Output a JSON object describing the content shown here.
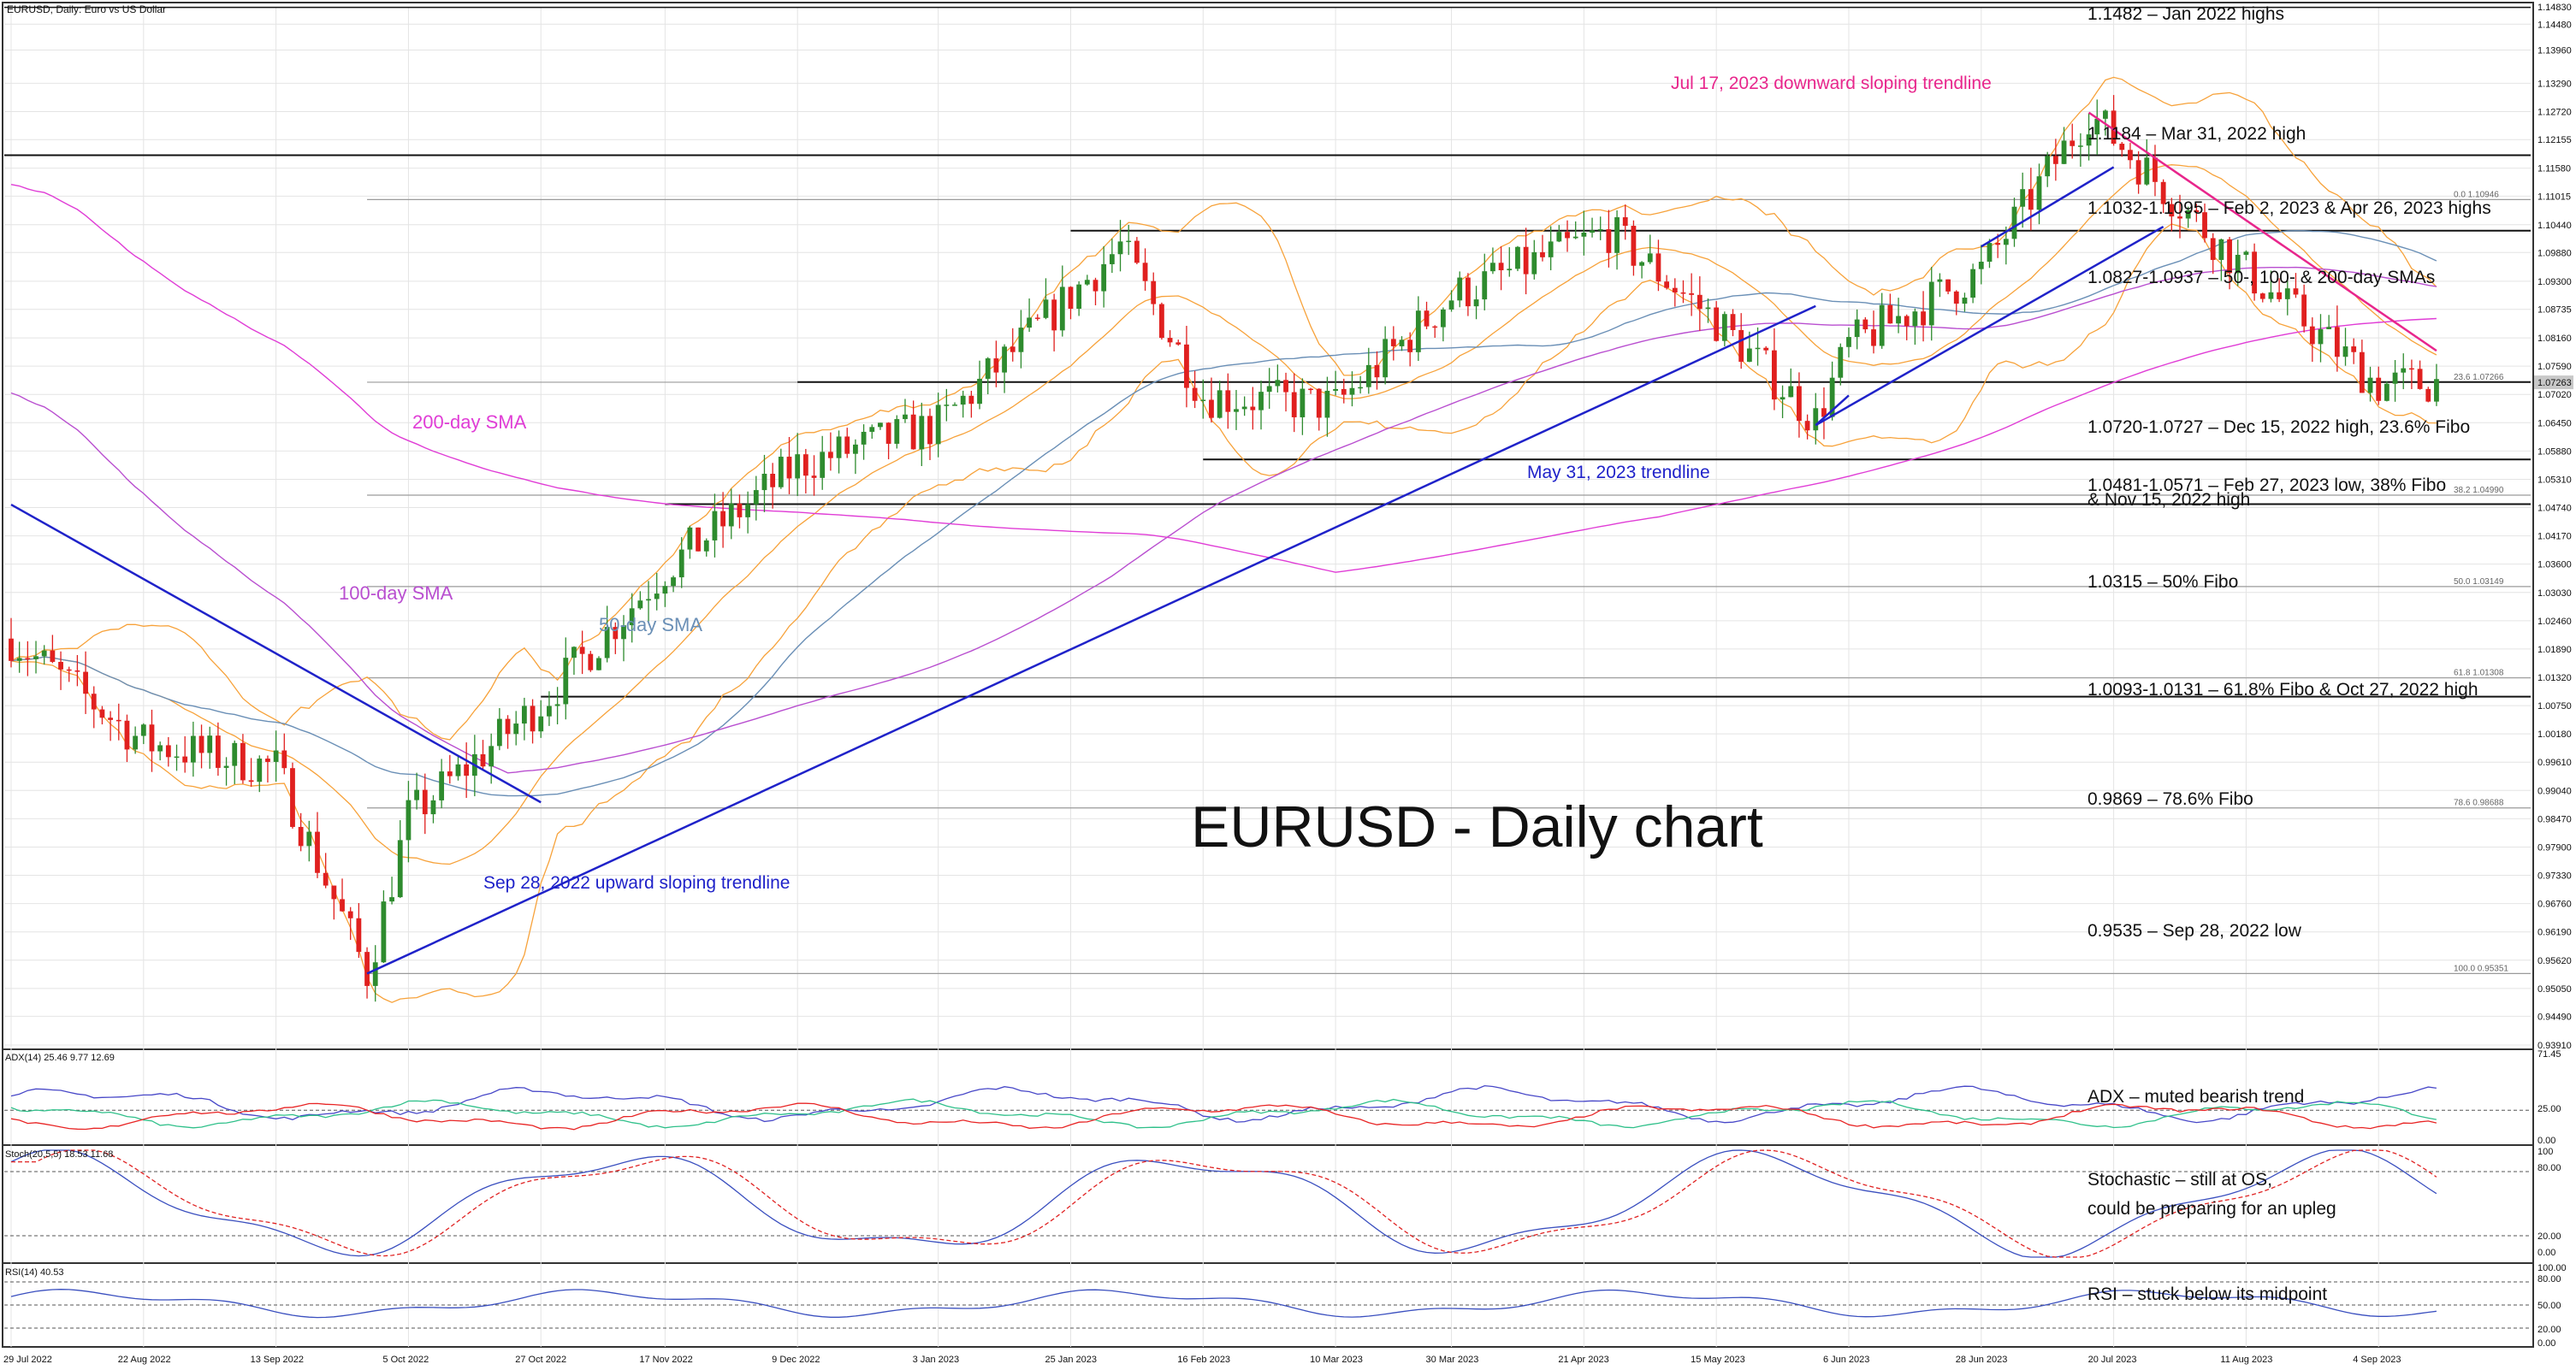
{
  "header": {
    "instrument_label": "EURUSD, Daily:  Euro vs US Dollar"
  },
  "title": "EURUSD - Daily chart",
  "colors": {
    "bull": "#2e8b2e",
    "bear": "#e0201f",
    "bollinger": "#f7a23a",
    "sma50": "#6a8fb6",
    "sma100": "#b94fd0",
    "sma200": "#e03dd6",
    "trend_blue": "#1f22c9",
    "trend_pink": "#e8268c",
    "adx": "#4848c8",
    "di_plus": "#2fc08a",
    "di_minus": "#e82424",
    "stoch_main": "#3a4fbf",
    "stoch_signal": "#e02222",
    "rsi": "#3a4fbf",
    "grid": "#e4e4e4",
    "fibo": "#9a9a9a",
    "level": "#111111"
  },
  "price_axis_ticks": [
    "1.14830",
    "1.14480",
    "1.13960",
    "1.13290",
    "1.12720",
    "1.12155",
    "1.11580",
    "1.11015",
    "1.10440",
    "1.09880",
    "1.09300",
    "1.08735",
    "1.08160",
    "1.07590",
    "1.07020",
    "1.06450",
    "1.05880",
    "1.05310",
    "1.04740",
    "1.04170",
    "1.03600",
    "1.03030",
    "1.02460",
    "1.01890",
    "1.01320",
    "1.00750",
    "1.00180",
    "0.99610",
    "0.99040",
    "0.98470",
    "0.97900",
    "0.97330",
    "0.96760",
    "0.96190",
    "0.95620",
    "0.95050",
    "0.94490",
    "0.93910"
  ],
  "price_current": "1.07263",
  "date_axis_ticks": [
    "29 Jul 2022",
    "22 Aug 2022",
    "13 Sep 2022",
    "5 Oct 2022",
    "27 Oct 2022",
    "17 Nov 2022",
    "9 Dec 2022",
    "3 Jan 2023",
    "25 Jan 2023",
    "16 Feb 2023",
    "10 Mar 2023",
    "30 Mar 2023",
    "21 Apr 2023",
    "15 May 2023",
    "6 Jun 2023",
    "28 Jun 2023",
    "20 Jul 2023",
    "11 Aug 2023",
    "4 Sep 2023"
  ],
  "fibo_labels": [
    "0.0 1.10946",
    "23.6 1.07266",
    "38.2 1.04990",
    "50.0 1.03149",
    "61.8 1.01308",
    "78.6 0.98688",
    "100.0 0.95351"
  ],
  "annotations": {
    "levels": [
      "1.1482 – Jan 2022 highs",
      "1.1184 – Mar 31, 2022 high",
      "1.1032-1.1095 – Feb 2, 2023 & Apr 26, 2023 highs",
      "1.0827-1.0937 – 50-, 100- & 200-day SMAs",
      "1.0720-1.0727 – Dec 15, 2022 high, 23.6% Fibo",
      "1.0481-1.0571 – Feb 27, 2023 low, 38% Fibo",
      "& Nov 15, 2022 high",
      "1.0315 – 50% Fibo",
      "1.0093-1.0131 – 61.8% Fibo & Oct 27, 2022 high",
      "0.9869 – 78.6% Fibo",
      "0.9535 – Sep 28, 2022 low"
    ],
    "trend_down": "Jul 17, 2023 downward sloping trendline",
    "trend_may": "May 31, 2023 trendline",
    "trend_sep": "Sep 28, 2022 upward sloping trendline",
    "sma200": "200-day SMA",
    "sma100": "100-day SMA",
    "sma50": "50-day SMA",
    "adx": "ADX – muted bearish trend",
    "stoch_1": "Stochastic – still at OS,",
    "stoch_2": "could be preparing for an upleg",
    "rsi": "RSI – stuck below its midpoint"
  },
  "adx_panel": {
    "header": "ADX(14) 25.46 9.77 12.69",
    "ticks": [
      "71.45",
      "25.00",
      "0.00"
    ]
  },
  "stoch_panel": {
    "header": "Stoch(20,5,5) 18.53 11.68",
    "ticks": [
      "100",
      "80.00",
      "20.00",
      "0.00"
    ]
  },
  "rsi_panel": {
    "header": "RSI(14) 40.53",
    "ticks": [
      "100.00",
      "80.00",
      "50.00",
      "20.00",
      "0.00"
    ]
  },
  "chart_data": {
    "type": "line",
    "series": [
      {
        "name": "EURUSD",
        "x": [
          "29 Jul 2022",
          "22 Aug 2022",
          "13 Sep 2022",
          "28 Sep 2022",
          "5 Oct 2022",
          "27 Oct 2022",
          "17 Nov 2022",
          "9 Dec 2022",
          "3 Jan 2023",
          "2 Feb 2023",
          "16 Feb 2023",
          "10 Mar 2023",
          "30 Mar 2023",
          "26 Apr 2023",
          "15 May 2023",
          "31 May 2023",
          "6 Jun 2023",
          "28 Jun 2023",
          "17 Jul 2023",
          "11 Aug 2023",
          "4 Sep 2023",
          "13 Sep 2023"
        ],
        "y": [
          1.021,
          1.0,
          0.995,
          0.9535,
          0.985,
          1.008,
          1.035,
          1.056,
          1.064,
          1.1,
          1.07,
          1.068,
          1.09,
          1.103,
          1.085,
          1.065,
          1.08,
          1.095,
          1.127,
          1.095,
          1.072,
          1.0726
        ]
      }
    ],
    "ylim": [
      0.9391,
      1.1483
    ]
  }
}
